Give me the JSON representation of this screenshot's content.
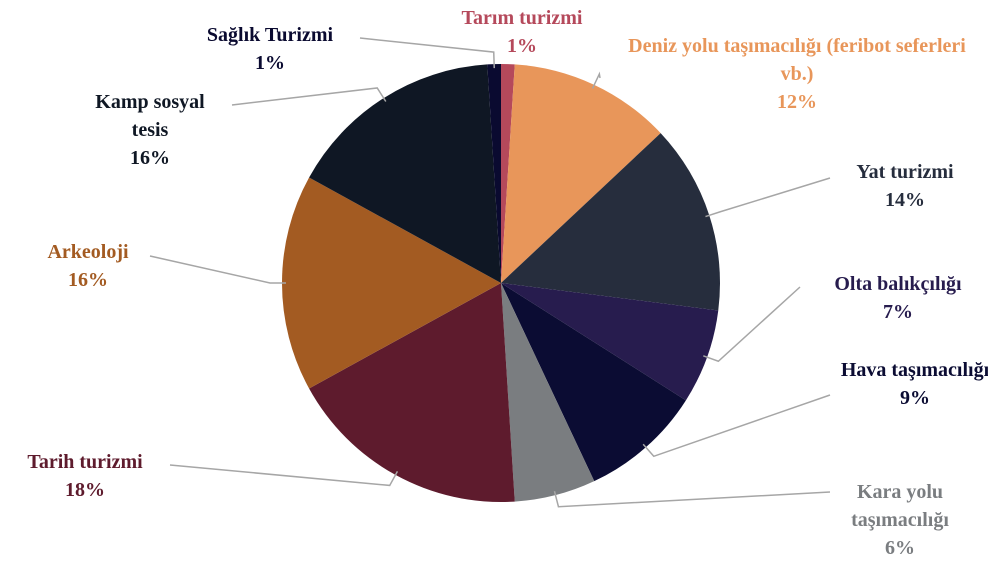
{
  "chart_data": {
    "type": "pie",
    "categories": [
      "Tarım turizmi",
      "Deniz yolu taşımacılığı (feribot seferleri vb.)",
      "Yat turizmi",
      "Olta balıkçılığı",
      "Hava taşımacılığı",
      "Kara yolu taşımacılığı",
      "Tarih turizmi",
      "Arkeoloji",
      "Kamp sosyal tesis",
      "Sağlık Turizmi"
    ],
    "values": [
      1,
      12,
      14,
      7,
      9,
      6,
      18,
      16,
      16,
      1
    ],
    "value_labels": [
      "1%",
      "12%",
      "14%",
      "7%",
      "9%",
      "6%",
      "18%",
      "16%",
      "16%",
      "1%"
    ],
    "colors": [
      "#b5495b",
      "#e8965a",
      "#262d3d",
      "#271c4e",
      "#0b0c33",
      "#7a7d80",
      "#5e1b2d",
      "#a35b22",
      "#0f1724",
      "#0a0a30"
    ]
  }
}
